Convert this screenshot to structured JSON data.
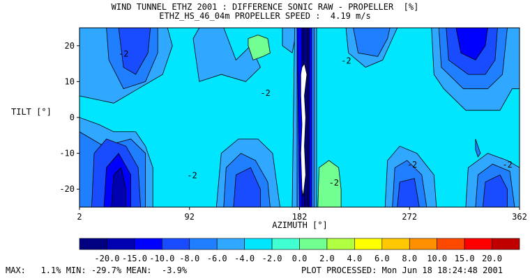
{
  "header": {
    "title_line1": "WIND TUNNEL ETHZ 2001 : DIFFERENCE SONIC RAW - PROPELLER  [%]",
    "title_line2": "ETHZ_HS_46_04m PROPELLER SPEED :  4.19 m/s"
  },
  "footer": {
    "stats": "MAX:   1.1% MIN: -29.7% MEAN:  -3.9%",
    "processed": "PLOT PROCESSED: Mon Jun 18 18:24:48 2001"
  },
  "colorbar": {
    "labels": [
      "-20.0",
      "-15.0",
      "-10.0",
      "-8.0",
      "-6.0",
      "-4.0",
      "-2.0",
      "0.0",
      "2.0",
      "4.0",
      "6.0",
      "8.0",
      "10.0",
      "15.0",
      "20.0"
    ],
    "colors": [
      "#000080",
      "#0000b0",
      "#0000ff",
      "#1a4cff",
      "#1f7fff",
      "#30a8ff",
      "#00e6ff",
      "#40ffd0",
      "#70ff90",
      "#b0ff40",
      "#ffff00",
      "#ffc800",
      "#ff9000",
      "#ff4800",
      "#ff0000",
      "#c00000"
    ]
  },
  "chart_data": {
    "type": "heatmap",
    "title": "WIND TUNNEL ETHZ 2001 : DIFFERENCE SONIC RAW - PROPELLER  [%]",
    "subtitle": "ETHZ_HS_46_04m PROPELLER SPEED :  4.19 m/s",
    "xlabel": "AZIMUTH [°]",
    "ylabel": "TILT [°]",
    "x_ticks": [
      2,
      92,
      182,
      272,
      362
    ],
    "y_ticks": [
      -20,
      -10,
      0,
      10,
      20
    ],
    "xlim": [
      2,
      362
    ],
    "ylim": [
      -25,
      25
    ],
    "levels": [
      -20.0,
      -15.0,
      -10.0,
      -8.0,
      -6.0,
      -4.0,
      -2.0,
      0.0,
      2.0,
      4.0,
      6.0,
      8.0,
      10.0,
      15.0,
      20.0
    ],
    "contour_labels": [
      "-2",
      "-2",
      "-2",
      "-2",
      "-2",
      "-2",
      "-2"
    ],
    "stats": {
      "max": 1.1,
      "min": -29.7,
      "mean": -3.9
    },
    "regions": [
      {
        "value": -3,
        "color": "#00e6ff",
        "points": [
          [
            2,
            -25
          ],
          [
            362,
            -25
          ],
          [
            362,
            25
          ],
          [
            2,
            25
          ]
        ]
      },
      {
        "value": -5,
        "color": "#30a8ff",
        "points": [
          [
            2,
            -25
          ],
          [
            62,
            -25
          ],
          [
            62,
            -14
          ],
          [
            56,
            -8
          ],
          [
            48,
            -4
          ],
          [
            30,
            -4
          ],
          [
            18,
            -2
          ],
          [
            2,
            0
          ]
        ]
      },
      {
        "value": -5,
        "color": "#30a8ff",
        "points": [
          [
            2,
            6
          ],
          [
            30,
            4
          ],
          [
            50,
            8
          ],
          [
            70,
            12
          ],
          [
            78,
            20
          ],
          [
            74,
            25
          ],
          [
            2,
            25
          ]
        ]
      },
      {
        "value": -5,
        "color": "#30a8ff",
        "points": [
          [
            120,
            25
          ],
          [
            130,
            16
          ],
          [
            142,
            20
          ],
          [
            150,
            14
          ],
          [
            138,
            10
          ],
          [
            118,
            12
          ],
          [
            100,
            10
          ],
          [
            95,
            22
          ],
          [
            100,
            25
          ]
        ]
      },
      {
        "value": -5,
        "color": "#30a8ff",
        "points": [
          [
            168,
            25
          ],
          [
            168,
            20
          ],
          [
            176,
            18
          ],
          [
            180,
            25
          ]
        ]
      },
      {
        "value": -5,
        "color": "#30a8ff",
        "points": [
          [
            178,
            25
          ],
          [
            176,
            -25
          ],
          [
            196,
            -25
          ],
          [
            196,
            25
          ]
        ]
      },
      {
        "value": -5,
        "color": "#30a8ff",
        "points": [
          [
            220,
            25
          ],
          [
            222,
            18
          ],
          [
            236,
            14
          ],
          [
            250,
            16
          ],
          [
            258,
            22
          ],
          [
            262,
            25
          ]
        ]
      },
      {
        "value": -5,
        "color": "#30a8ff",
        "points": [
          [
            290,
            25
          ],
          [
            292,
            12
          ],
          [
            300,
            8
          ],
          [
            318,
            2
          ],
          [
            346,
            2
          ],
          [
            356,
            8
          ],
          [
            362,
            8
          ],
          [
            362,
            25
          ]
        ]
      },
      {
        "value": -5,
        "color": "#30a8ff",
        "points": [
          [
            252,
            -25
          ],
          [
            254,
            -12
          ],
          [
            264,
            -8
          ],
          [
            278,
            -10
          ],
          [
            292,
            -16
          ],
          [
            294,
            -25
          ]
        ]
      },
      {
        "value": -5,
        "color": "#30a8ff",
        "points": [
          [
            318,
            -25
          ],
          [
            320,
            -14
          ],
          [
            336,
            -10
          ],
          [
            352,
            -12
          ],
          [
            362,
            -14
          ],
          [
            362,
            -25
          ]
        ]
      },
      {
        "value": -5,
        "color": "#30a8ff",
        "points": [
          [
            114,
            -25
          ],
          [
            118,
            -10
          ],
          [
            132,
            -6
          ],
          [
            148,
            -6
          ],
          [
            160,
            -10
          ],
          [
            166,
            -25
          ]
        ]
      },
      {
        "value": -7,
        "color": "#1f7fff",
        "points": [
          [
            2,
            -25
          ],
          [
            56,
            -25
          ],
          [
            56,
            -10
          ],
          [
            44,
            -6
          ],
          [
            22,
            -8
          ],
          [
            2,
            -4
          ]
        ]
      },
      {
        "value": -7,
        "color": "#1f7fff",
        "points": [
          [
            24,
            25
          ],
          [
            26,
            16
          ],
          [
            38,
            8
          ],
          [
            56,
            10
          ],
          [
            66,
            18
          ],
          [
            66,
            25
          ]
        ]
      },
      {
        "value": -7,
        "color": "#1f7fff",
        "points": [
          [
            120,
            -25
          ],
          [
            122,
            -14
          ],
          [
            134,
            -10
          ],
          [
            146,
            -12
          ],
          [
            156,
            -18
          ],
          [
            158,
            -25
          ]
        ]
      },
      {
        "value": -7,
        "color": "#1f7fff",
        "points": [
          [
            180,
            25
          ],
          [
            180,
            -25
          ],
          [
            194,
            -25
          ],
          [
            194,
            25
          ]
        ]
      },
      {
        "value": -7,
        "color": "#1f7fff",
        "points": [
          [
            226,
            25
          ],
          [
            230,
            18
          ],
          [
            246,
            17
          ],
          [
            254,
            22
          ],
          [
            256,
            25
          ]
        ]
      },
      {
        "value": -7,
        "color": "#1f7fff",
        "points": [
          [
            296,
            25
          ],
          [
            298,
            14
          ],
          [
            316,
            8
          ],
          [
            336,
            8
          ],
          [
            348,
            12
          ],
          [
            352,
            25
          ]
        ]
      },
      {
        "value": -7,
        "color": "#1f7fff",
        "points": [
          [
            258,
            -25
          ],
          [
            260,
            -14
          ],
          [
            270,
            -12
          ],
          [
            282,
            -16
          ],
          [
            286,
            -25
          ]
        ]
      },
      {
        "value": -7,
        "color": "#1f7fff",
        "points": [
          [
            326,
            -25
          ],
          [
            328,
            -16
          ],
          [
            340,
            -13
          ],
          [
            354,
            -15
          ],
          [
            358,
            -25
          ]
        ]
      },
      {
        "value": -9,
        "color": "#1a4cff",
        "points": [
          [
            12,
            -25
          ],
          [
            14,
            -10
          ],
          [
            24,
            -6
          ],
          [
            40,
            -8
          ],
          [
            50,
            -14
          ],
          [
            52,
            -25
          ]
        ]
      },
      {
        "value": -9,
        "color": "#1a4cff",
        "points": [
          [
            34,
            25
          ],
          [
            38,
            14
          ],
          [
            48,
            12
          ],
          [
            58,
            18
          ],
          [
            60,
            25
          ]
        ]
      },
      {
        "value": -9,
        "color": "#1a4cff",
        "points": [
          [
            128,
            -25
          ],
          [
            130,
            -16
          ],
          [
            142,
            -14
          ],
          [
            150,
            -20
          ],
          [
            150,
            -25
          ]
        ]
      },
      {
        "value": -9,
        "color": "#1a4cff",
        "points": [
          [
            302,
            25
          ],
          [
            304,
            16
          ],
          [
            320,
            12
          ],
          [
            334,
            12
          ],
          [
            342,
            16
          ],
          [
            344,
            25
          ]
        ]
      },
      {
        "value": -9,
        "color": "#1a4cff",
        "points": [
          [
            262,
            -25
          ],
          [
            264,
            -18
          ],
          [
            276,
            -17
          ],
          [
            280,
            -25
          ]
        ]
      },
      {
        "value": -9,
        "color": "#1a4cff",
        "points": [
          [
            332,
            -25
          ],
          [
            334,
            -18
          ],
          [
            346,
            -16
          ],
          [
            352,
            -20
          ],
          [
            352,
            -25
          ]
        ]
      },
      {
        "value": -12,
        "color": "#0000ff",
        "points": [
          [
            22,
            -25
          ],
          [
            24,
            -14
          ],
          [
            34,
            -10
          ],
          [
            44,
            -16
          ],
          [
            44,
            -25
          ]
        ]
      },
      {
        "value": -12,
        "color": "#0000ff",
        "points": [
          [
            310,
            25
          ],
          [
            314,
            18
          ],
          [
            326,
            16
          ],
          [
            334,
            20
          ],
          [
            336,
            25
          ]
        ]
      },
      {
        "value": -12,
        "color": "#0000ff",
        "points": [
          [
            180,
            25
          ],
          [
            182,
            -25
          ],
          [
            192,
            -25
          ],
          [
            192,
            25
          ]
        ]
      },
      {
        "value": -16,
        "color": "#0000b0",
        "points": [
          [
            28,
            -25
          ],
          [
            30,
            -16
          ],
          [
            36,
            -14
          ],
          [
            40,
            -20
          ],
          [
            40,
            -25
          ]
        ]
      },
      {
        "value": -16,
        "color": "#0000b0",
        "points": [
          [
            184,
            25
          ],
          [
            184,
            -25
          ],
          [
            190,
            -25
          ],
          [
            190,
            25
          ]
        ]
      },
      {
        "value": -25,
        "color": "#000080",
        "points": [
          [
            185,
            25
          ],
          [
            186,
            -25
          ],
          [
            189,
            -25
          ],
          [
            189,
            25
          ]
        ]
      },
      {
        "value": 1,
        "color": "#70ff90",
        "points": [
          [
            140,
            20
          ],
          [
            144,
            16
          ],
          [
            152,
            17
          ],
          [
            158,
            18
          ],
          [
            156,
            22
          ],
          [
            148,
            23
          ],
          [
            140,
            22
          ]
        ]
      },
      {
        "value": 1,
        "color": "#70ff90",
        "points": [
          [
            197,
            -25
          ],
          [
            198,
            -14
          ],
          [
            206,
            -12
          ],
          [
            214,
            -14
          ],
          [
            216,
            -20
          ],
          [
            216,
            -25
          ]
        ]
      },
      {
        "value": -7,
        "color": "#1f7fff",
        "points": [
          [
            326,
            -6
          ],
          [
            328,
            -8
          ],
          [
            330,
            -10
          ],
          [
            328,
            -11
          ],
          [
            326,
            -9
          ]
        ]
      },
      {
        "value": -30,
        "color": "#ffffff",
        "points": [
          [
            184,
            14
          ],
          [
            186,
            15
          ],
          [
            188,
            12
          ],
          [
            186,
            6
          ],
          [
            187,
            0
          ],
          [
            186,
            -8
          ],
          [
            187,
            -16
          ],
          [
            185,
            -22
          ],
          [
            184,
            -20
          ],
          [
            183,
            -10
          ],
          [
            184,
            -2
          ],
          [
            183,
            6
          ],
          [
            183,
            12
          ]
        ]
      }
    ]
  }
}
